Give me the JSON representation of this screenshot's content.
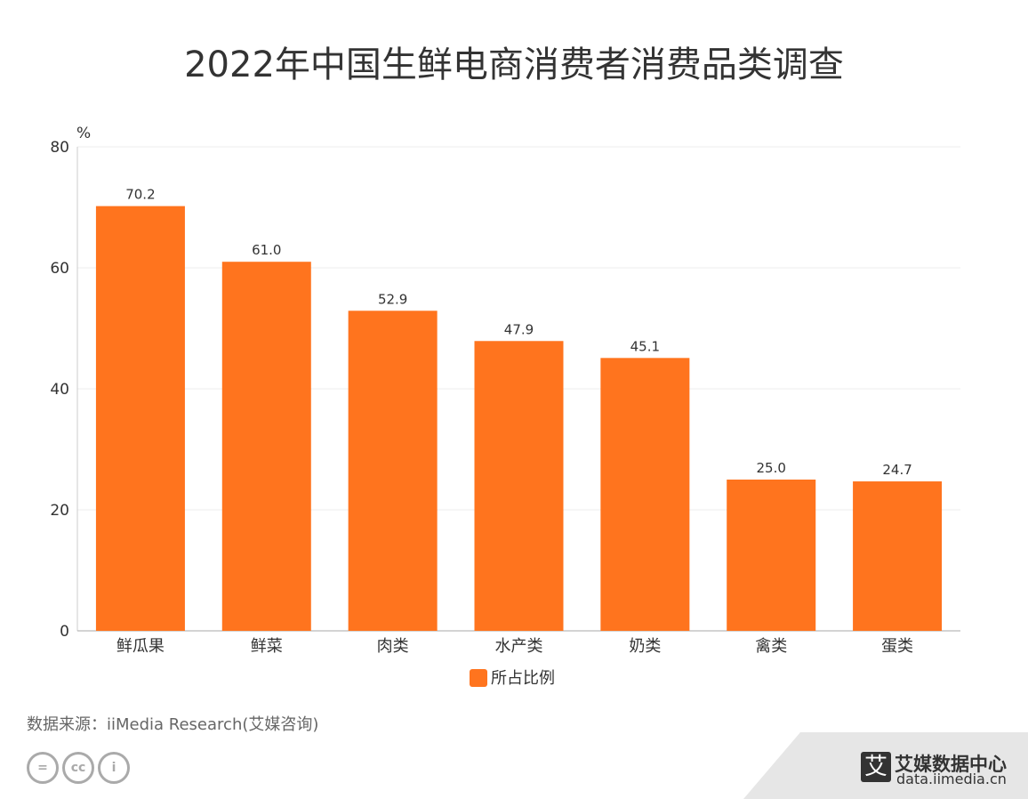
{
  "chart_data": {
    "type": "bar",
    "title": "2022年中国生鲜电商消费者消费品类调查",
    "ylabel": "%",
    "ylim": [
      0,
      80
    ],
    "yticks": [
      0,
      20,
      40,
      60,
      80
    ],
    "grid": true,
    "legend_position": "bottom",
    "categories": [
      "鲜瓜果",
      "鲜菜",
      "肉类",
      "水产类",
      "奶类",
      "禽类",
      "蛋类"
    ],
    "series": [
      {
        "name": "所占比例",
        "values": [
          70.2,
          61.0,
          52.9,
          47.9,
          45.1,
          25.0,
          24.7
        ],
        "color": "#ff741e"
      }
    ]
  },
  "source": "数据来源：iiMedia Research(艾媒咨询)",
  "watermark": {
    "logo": "艾",
    "name": "艾媒数据中心",
    "url": "data.iimedia.cn"
  },
  "license_icons": [
    "cc-nd-icon",
    "cc-icon",
    "cc-by-icon"
  ]
}
